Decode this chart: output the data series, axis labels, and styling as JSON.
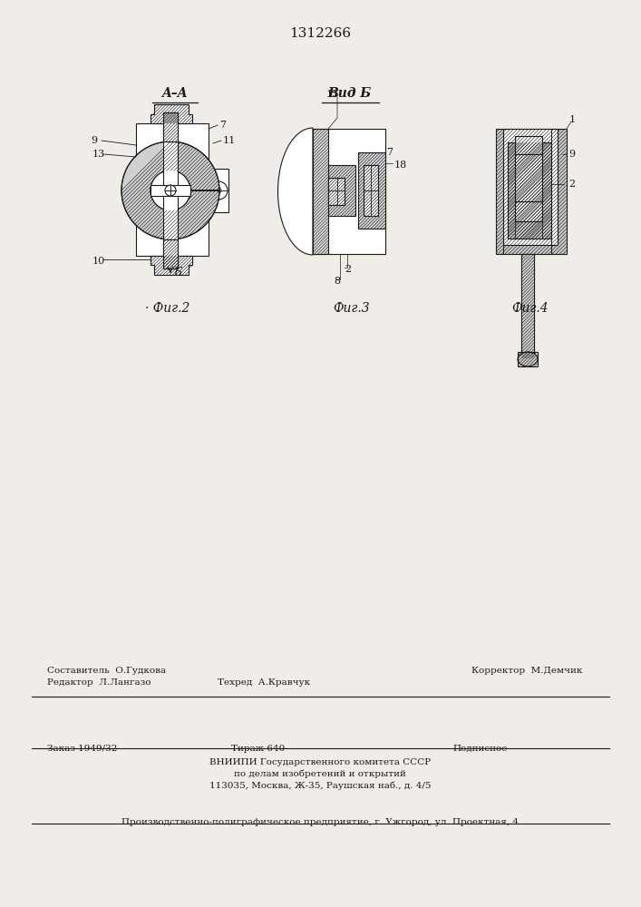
{
  "patent_number": "1312266",
  "background_color": "#f0ede8",
  "line_color": "#1a1a1a",
  "fig2_label": "Фиг.2",
  "fig3_label": "Фиг.3",
  "fig4_label": "Фиг.4",
  "fig2_title": "A–A",
  "fig3_title": "Вид Б",
  "bottom_editor": "Редактор  Л.Лангазо",
  "bottom_composer": "Составитель  О.Гудкова",
  "bottom_tech": "Техред  А.Кравчук",
  "bottom_corrector": "Корректор  М.Демчик",
  "bottom_order": "Заказ 1949/32",
  "bottom_tirazh": "Тираж 640",
  "bottom_podp": "Подписное",
  "bottom_vniip1": "ВНИИПИ Государственного комитета СССР",
  "bottom_vniip2": "по делам изобретений и открытий",
  "bottom_vniip3": "113035, Москва, Ж-35, Раушская наб., д. 4/5",
  "bottom_factory": "Производственно-полиграфическое предприятие, г. Ужгород, ул. Проектная, 4"
}
